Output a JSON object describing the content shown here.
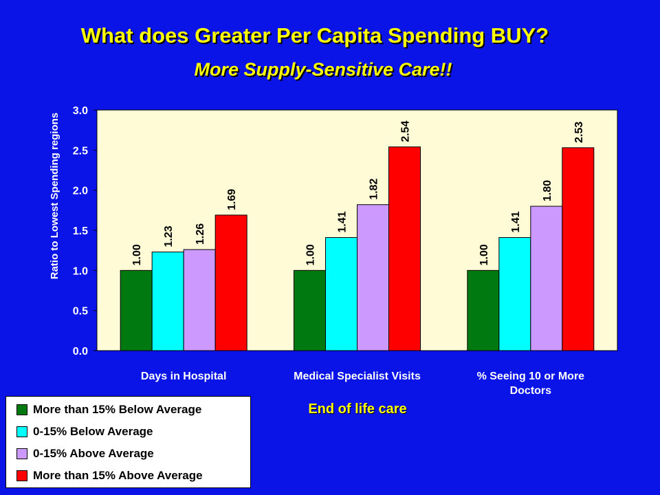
{
  "slide": {
    "title": "What does Greater Per Capita Spending BUY?",
    "subtitle": "More Supply-Sensitive Care!!",
    "footer": "End of life care"
  },
  "colors": {
    "background": "#0a14e6",
    "plot_background": "#fffbd6",
    "title": "#ffff00"
  },
  "chart_data": {
    "type": "bar",
    "title": "",
    "xlabel": "",
    "ylabel": "Ratio to Lowest Spending regions",
    "ylim": [
      0,
      3
    ],
    "yticks": [
      "0.0",
      "0.5",
      "1.0",
      "1.5",
      "2.0",
      "2.5",
      "3.0"
    ],
    "categories": [
      "Days in Hospital",
      "Medical Specialist Visits",
      "% Seeing 10 or More Doctors"
    ],
    "series": [
      {
        "name": "More than 15% Below Average",
        "color": "#007a10",
        "values": [
          1.0,
          1.0,
          1.0
        ],
        "labels": [
          "1.00",
          "1.00",
          "1.00"
        ]
      },
      {
        "name": "0-15% Below Average",
        "color": "#00ffff",
        "values": [
          1.23,
          1.41,
          1.41
        ],
        "labels": [
          "1.23",
          "1.41",
          "1.41"
        ]
      },
      {
        "name": "0-15% Above Average",
        "color": "#cc99ff",
        "values": [
          1.26,
          1.82,
          1.8
        ],
        "labels": [
          "1.26",
          "1.82",
          "1.80"
        ]
      },
      {
        "name": "More than 15% Above Average",
        "color": "#ff0000",
        "values": [
          1.69,
          2.54,
          2.53
        ],
        "labels": [
          "1.69",
          "2.54",
          "2.53"
        ]
      }
    ],
    "grid": false,
    "legend_placement": "bottom-left"
  }
}
